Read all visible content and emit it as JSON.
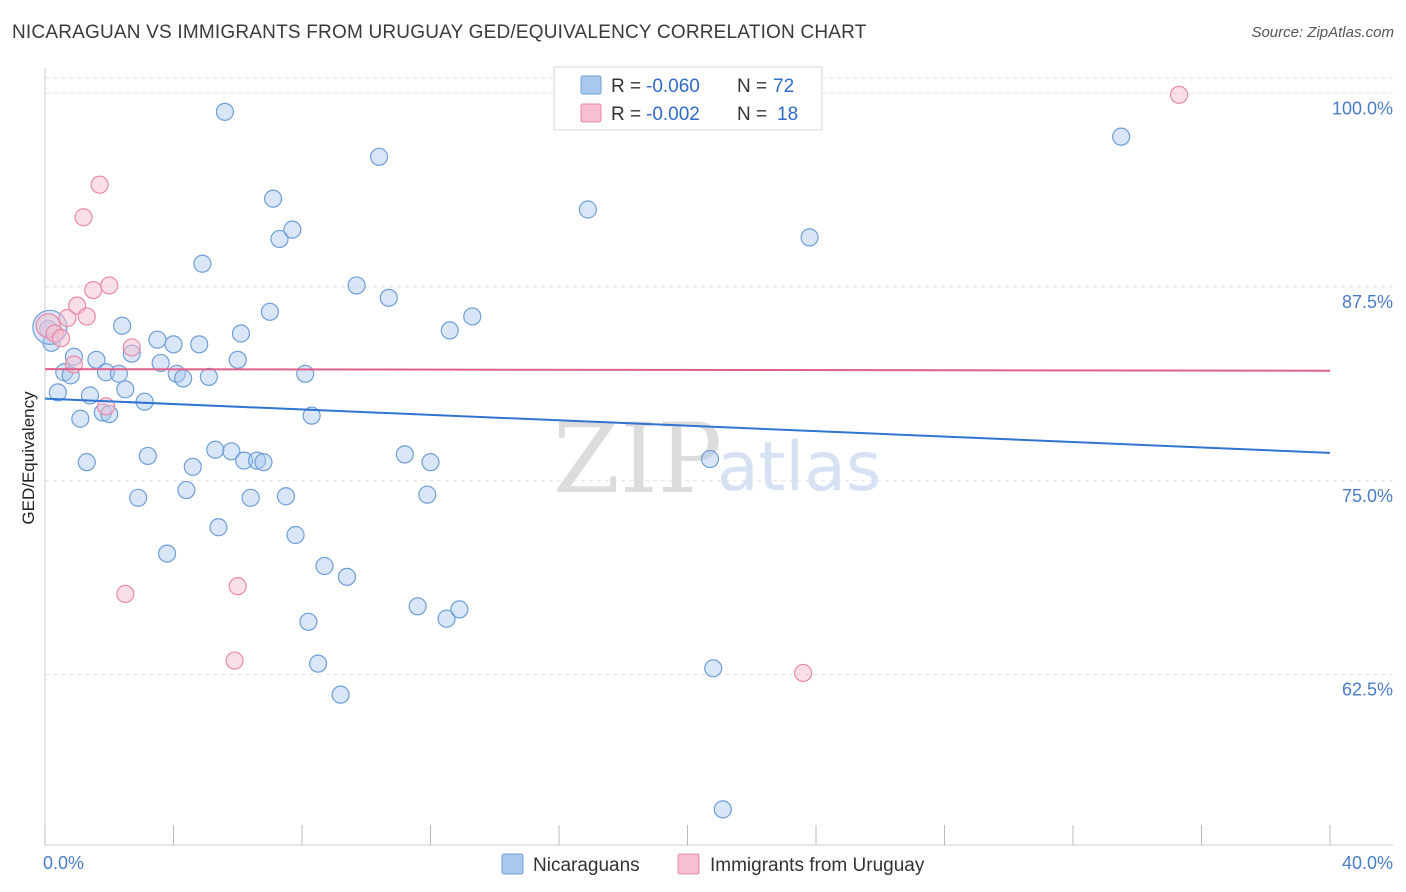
{
  "header": {
    "title": "NICARAGUAN VS IMMIGRANTS FROM URUGUAY GED/EQUIVALENCY CORRELATION CHART",
    "source": "Source: ZipAtlas.com"
  },
  "watermark": {
    "zip": "ZIP",
    "atlas": "atlas"
  },
  "chart_data": {
    "type": "scatter",
    "title": "NICARAGUAN VS IMMIGRANTS FROM URUGUAY GED/EQUIVALENCY CORRELATION CHART",
    "xlabel": "",
    "ylabel": "GED/Equivalency",
    "xlim": [
      0,
      40
    ],
    "ylim": [
      51.5,
      101.5
    ],
    "x_tick_labels": [
      "0.0%",
      "40.0%"
    ],
    "y_ticks": [
      62.5,
      75.0,
      87.5,
      100.0
    ],
    "y_tick_labels": [
      "62.5%",
      "75.0%",
      "87.5%",
      "100.0%"
    ],
    "grid": true,
    "legend_position": "top-center",
    "series": [
      {
        "name": "Nicaraguans",
        "color": "#a9c8ee",
        "edge_color": "#6e9fd8",
        "line_color": "#2f74d0",
        "r_label": "R = ",
        "r_value": "-0.060",
        "n_label": "N = ",
        "n_value": "72",
        "trend": {
          "x": [
            0,
            40
          ],
          "y": [
            80.3,
            76.8
          ]
        },
        "points": [
          [
            0.1,
            84.8
          ],
          [
            0.2,
            83.9
          ],
          [
            0.4,
            80.7
          ],
          [
            0.6,
            82.0
          ],
          [
            0.8,
            81.8
          ],
          [
            0.9,
            83.0
          ],
          [
            1.1,
            79.0
          ],
          [
            1.3,
            76.2
          ],
          [
            1.4,
            80.5
          ],
          [
            1.6,
            82.8
          ],
          [
            1.8,
            79.4
          ],
          [
            1.9,
            82.0
          ],
          [
            2.0,
            79.3
          ],
          [
            2.3,
            81.9
          ],
          [
            2.4,
            85.0
          ],
          [
            2.5,
            80.9
          ],
          [
            2.7,
            83.2
          ],
          [
            2.9,
            73.9
          ],
          [
            3.1,
            80.1
          ],
          [
            3.2,
            76.6
          ],
          [
            3.5,
            84.1
          ],
          [
            3.6,
            82.6
          ],
          [
            3.8,
            70.3
          ],
          [
            4.0,
            83.8
          ],
          [
            4.1,
            81.9
          ],
          [
            4.3,
            81.6
          ],
          [
            4.4,
            74.4
          ],
          [
            4.6,
            75.9
          ],
          [
            4.8,
            83.8
          ],
          [
            4.9,
            89.0
          ],
          [
            5.1,
            81.7
          ],
          [
            5.3,
            77.0
          ],
          [
            5.4,
            72.0
          ],
          [
            5.6,
            98.8
          ],
          [
            5.8,
            76.9
          ],
          [
            6.0,
            82.8
          ],
          [
            6.1,
            84.5
          ],
          [
            6.2,
            76.3
          ],
          [
            6.4,
            73.9
          ],
          [
            6.6,
            76.3
          ],
          [
            6.8,
            76.2
          ],
          [
            7.0,
            85.9
          ],
          [
            7.1,
            93.2
          ],
          [
            7.3,
            90.6
          ],
          [
            7.5,
            74.0
          ],
          [
            7.7,
            91.2
          ],
          [
            7.8,
            71.5
          ],
          [
            8.1,
            81.9
          ],
          [
            8.2,
            65.9
          ],
          [
            8.3,
            79.2
          ],
          [
            8.5,
            63.2
          ],
          [
            8.7,
            69.5
          ],
          [
            9.2,
            61.2
          ],
          [
            9.4,
            68.8
          ],
          [
            9.7,
            87.6
          ],
          [
            10.4,
            95.9
          ],
          [
            10.7,
            86.8
          ],
          [
            11.2,
            76.7
          ],
          [
            11.6,
            66.9
          ],
          [
            11.9,
            74.1
          ],
          [
            12.0,
            76.2
          ],
          [
            12.6,
            84.7
          ],
          [
            12.5,
            66.1
          ],
          [
            12.9,
            66.7
          ],
          [
            13.3,
            85.6
          ],
          [
            16.9,
            92.5
          ],
          [
            20.7,
            76.4
          ],
          [
            20.8,
            62.9
          ],
          [
            21.1,
            53.8
          ],
          [
            23.8,
            90.7
          ],
          [
            33.5,
            97.2
          ],
          [
            0.15,
            84.9
          ]
        ]
      },
      {
        "name": "Immigrants from Uruguay",
        "color": "#f7bfd0",
        "edge_color": "#e88aa8",
        "line_color": "#e0608a",
        "r_label": "R = ",
        "r_value": "-0.002",
        "n_label": "N = ",
        "n_value": "18",
        "trend": {
          "x": [
            0,
            40
          ],
          "y": [
            82.2,
            82.1
          ]
        },
        "points": [
          [
            0.1,
            85.0
          ],
          [
            0.3,
            84.5
          ],
          [
            0.5,
            84.2
          ],
          [
            0.7,
            85.5
          ],
          [
            0.9,
            82.5
          ],
          [
            1.0,
            86.3
          ],
          [
            1.2,
            92.0
          ],
          [
            1.3,
            85.6
          ],
          [
            1.5,
            87.3
          ],
          [
            1.7,
            94.1
          ],
          [
            1.9,
            79.8
          ],
          [
            2.0,
            87.6
          ],
          [
            2.5,
            67.7
          ],
          [
            2.7,
            83.6
          ],
          [
            5.9,
            63.4
          ],
          [
            6.0,
            68.2
          ],
          [
            23.6,
            62.6
          ],
          [
            35.3,
            99.9
          ]
        ]
      }
    ]
  }
}
